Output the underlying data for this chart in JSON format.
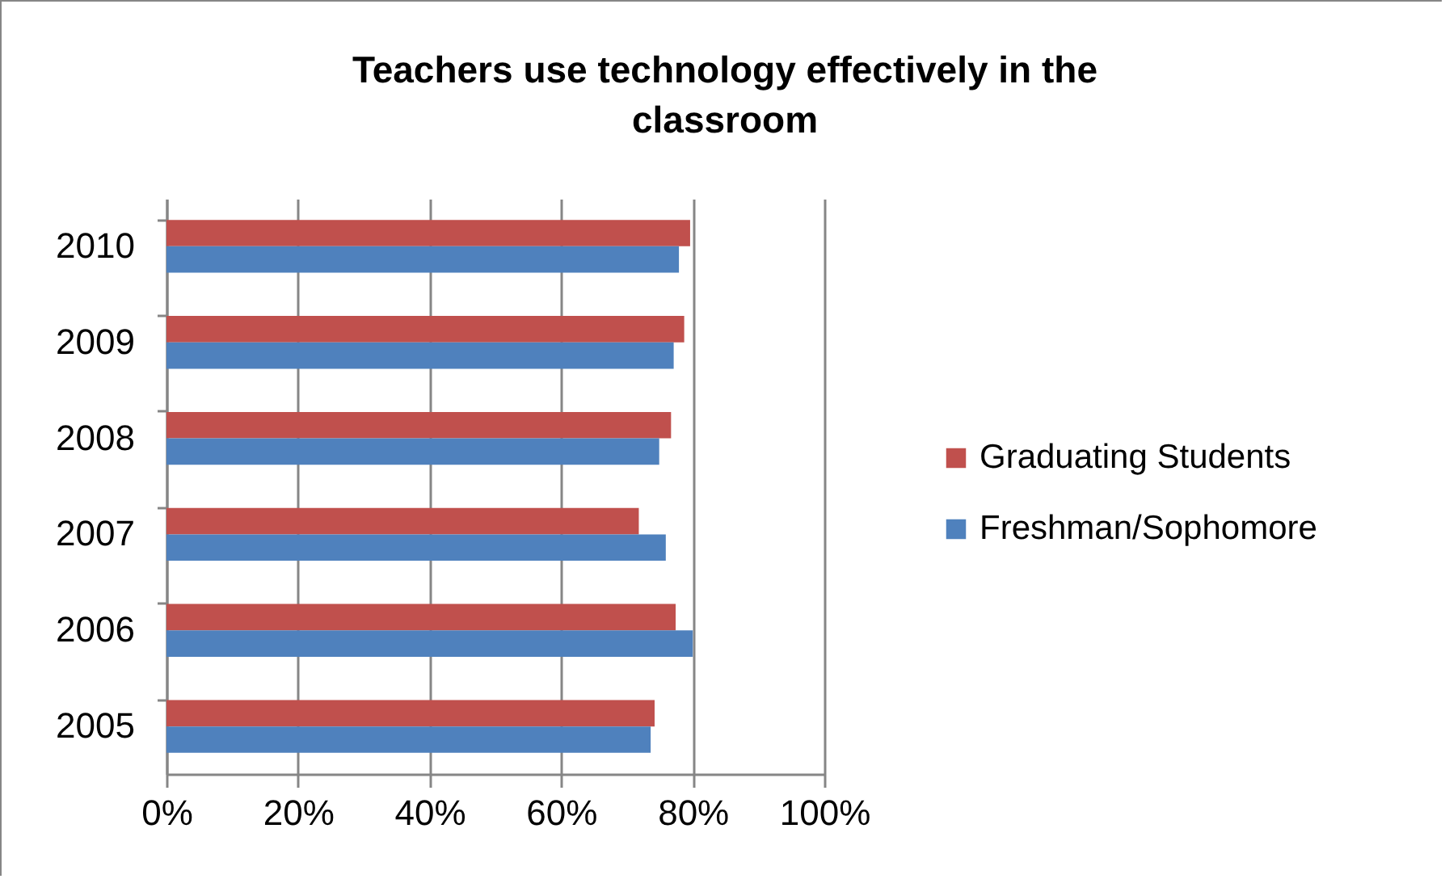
{
  "chart_data": {
    "type": "bar",
    "orientation": "horizontal",
    "title": "Teachers use technology effectively in the classroom",
    "categories": [
      "2010",
      "2009",
      "2008",
      "2007",
      "2006",
      "2005"
    ],
    "series": [
      {
        "name": "Graduating Students",
        "color": "#c0504d",
        "values": [
          79.6,
          78.7,
          76.7,
          71.8,
          77.4,
          74.2
        ]
      },
      {
        "name": "Freshman/Sophomore",
        "color": "#4f81bd",
        "values": [
          77.9,
          77.1,
          74.9,
          75.9,
          80,
          73.6
        ]
      }
    ],
    "xlim": [
      0,
      100
    ],
    "xticks": [
      {
        "value": 0,
        "label": "0%"
      },
      {
        "value": 20,
        "label": "20%"
      },
      {
        "value": 40,
        "label": "40%"
      },
      {
        "value": 60,
        "label": "60%"
      },
      {
        "value": 80,
        "label": "80%"
      },
      {
        "value": 100,
        "label": "100%"
      }
    ],
    "grid": "x",
    "legend": "right"
  }
}
